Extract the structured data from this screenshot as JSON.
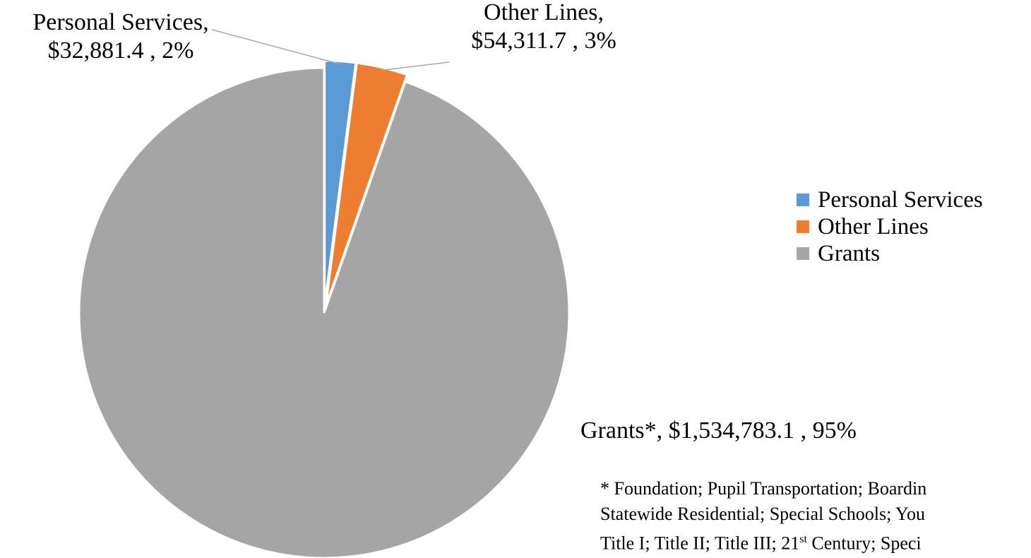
{
  "colors": {
    "personal_services": "#5B9BD5",
    "other_lines": "#ED7D31",
    "grants": "#A5A5A5",
    "leader_line": "#A6A6A6"
  },
  "chart_data": {
    "type": "pie",
    "categories": [
      "Personal Services",
      "Other Lines",
      "Grants"
    ],
    "values": [
      32881.4,
      54311.7,
      1534783.1
    ],
    "percentages": [
      2,
      3,
      95
    ],
    "data_labels": [
      {
        "line1": "Personal Services,",
        "line2": "$32,881.4 , 2%"
      },
      {
        "line1": "Other Lines,",
        "line2": "$54,311.7 , 3%"
      },
      {
        "line1": "Grants*,  $1,534,783.1 , 95%"
      }
    ],
    "legend": [
      "Personal Services",
      "Other Lines",
      "Grants"
    ],
    "legend_position": "right",
    "exploded": true,
    "footnote": {
      "line1": "* Foundation; Pupil Transportation; Boardin",
      "line2": "Statewide Residential; Special Schools; You",
      "line3_pre": "Title I; Title II; Title III; 21",
      "line3_sup": "st",
      "line3_post": " Century; Speci"
    }
  }
}
